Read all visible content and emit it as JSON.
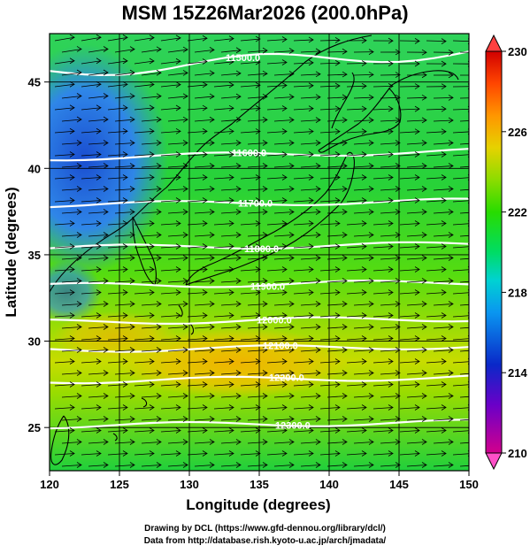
{
  "title": "MSM 15Z26Mar2026 (200.0hPa)",
  "x_axis": {
    "label": "Longitude (degrees)",
    "min": 120,
    "max": 150,
    "ticks": [
      120,
      125,
      130,
      135,
      140,
      145,
      150
    ]
  },
  "y_axis": {
    "label": "Latitude  (degrees)",
    "min": 22.5,
    "max": 47.8,
    "ticks": [
      25,
      30,
      35,
      40,
      45
    ]
  },
  "colorbar": {
    "min": 210,
    "max": 230,
    "tick_labels": [
      "230",
      "226",
      "222",
      "218",
      "214",
      "210"
    ],
    "tick_values": [
      230,
      226,
      222,
      218,
      214,
      210
    ],
    "colors": [
      "#c80096",
      "#5a00c8",
      "#0032c8",
      "#0078ff",
      "#00c8dc",
      "#00dc78",
      "#32dc00",
      "#96dc00",
      "#e6d200",
      "#ff8c00",
      "#ff3c00",
      "#c80000"
    ]
  },
  "contours": [
    {
      "label": "11500.0",
      "lat": 46.2
    },
    {
      "label": "11600.0",
      "lat": 40.8
    },
    {
      "label": "11700.0",
      "lat": 38.0
    },
    {
      "label": "11800.0",
      "lat": 35.5
    },
    {
      "label": "11900.0",
      "lat": 33.3
    },
    {
      "label": "12000.0",
      "lat": 31.2
    },
    {
      "label": "12100.0",
      "lat": 29.6
    },
    {
      "label": "12200.0",
      "lat": 27.8
    },
    {
      "label": "12300.0",
      "lat": 25.2
    }
  ],
  "credits": {
    "line1": "Drawing by DCL (https://www.gfd-dennou.org/library/dcl/)",
    "line2": "Data from http://database.rish.kyoto-u.ac.jp/arch/jmadata/"
  }
}
